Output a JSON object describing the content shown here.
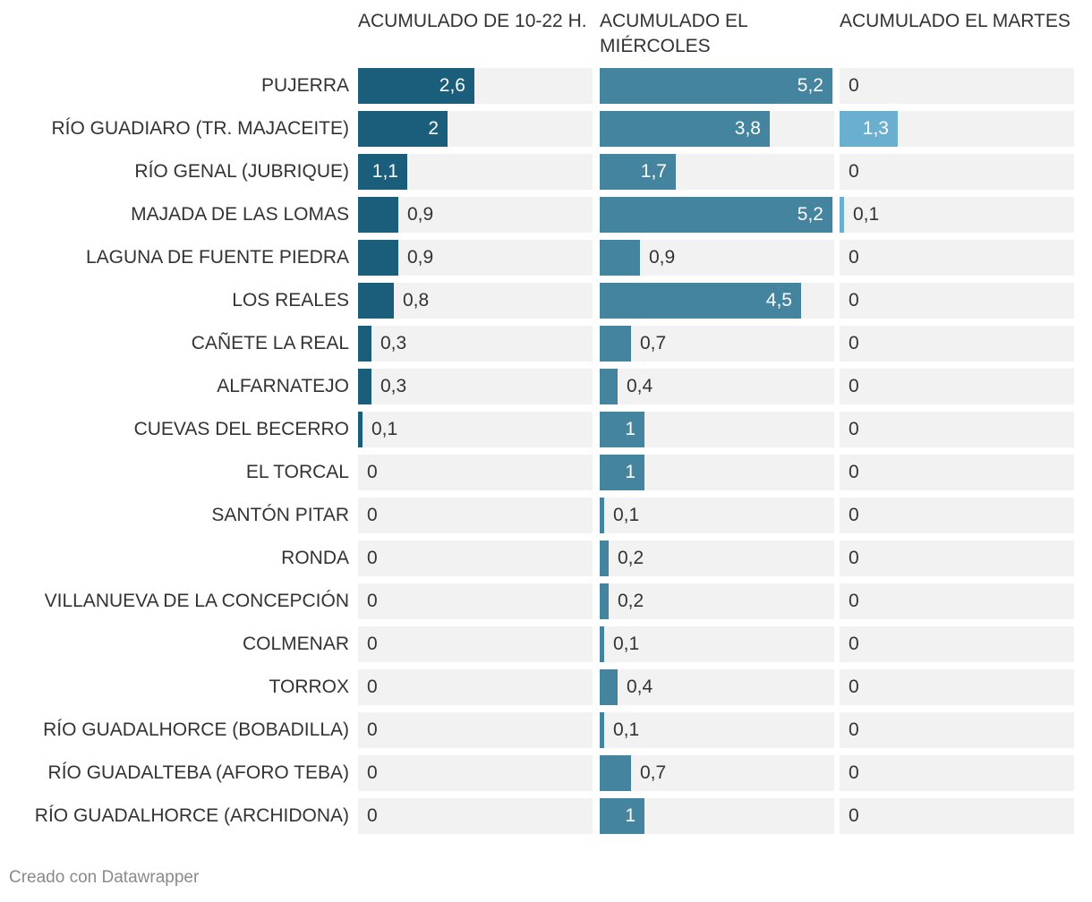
{
  "chart_data": {
    "type": "bar",
    "orientation": "horizontal",
    "categories": [
      "PUJERRA",
      "RÍO GUADIARO (TR. MAJACEITE)",
      "RÍO GENAL (JUBRIQUE)",
      "MAJADA DE LAS LOMAS",
      "LAGUNA DE FUENTE PIEDRA",
      "LOS REALES",
      "CAÑETE LA REAL",
      "ALFARNATEJO",
      "CUEVAS DEL BECERRO",
      "EL TORCAL",
      "SANTÓN PITAR",
      "RONDA",
      "VILLANUEVA DE LA CONCEPCIÓN",
      "COLMENAR",
      "TORROX",
      "RÍO GUADALHORCE (BOBADILLA)",
      "RÍO GUADALTEBA (AFORO TEBA)",
      "RÍO GUADALHORCE (ARCHIDONA)"
    ],
    "series": [
      {
        "name": "ACUMULADO DE 10-22 H.",
        "color": "#1b5e7b",
        "values": [
          2.6,
          2,
          1.1,
          0.9,
          0.9,
          0.8,
          0.3,
          0.3,
          0.1,
          0,
          0,
          0,
          0,
          0,
          0,
          0,
          0,
          0
        ],
        "labels": [
          "2,6",
          "2",
          "1,1",
          "0,9",
          "0,9",
          "0,8",
          "0,3",
          "0,3",
          "0,1",
          "0",
          "0",
          "0",
          "0",
          "0",
          "0",
          "0",
          "0",
          "0"
        ]
      },
      {
        "name": "ACUMULADO EL MIÉRCOLES",
        "color": "#44849f",
        "values": [
          5.2,
          3.8,
          1.7,
          5.2,
          0.9,
          4.5,
          0.7,
          0.4,
          1,
          1,
          0.1,
          0.2,
          0.2,
          0.1,
          0.4,
          0.1,
          0.7,
          1
        ],
        "labels": [
          "5,2",
          "3,8",
          "1,7",
          "5,2",
          "0,9",
          "4,5",
          "0,7",
          "0,4",
          "1",
          "1",
          "0,1",
          "0,2",
          "0,2",
          "0,1",
          "0,4",
          "0,1",
          "0,7",
          "1"
        ]
      },
      {
        "name": "ACUMULADO EL MARTES",
        "color": "#6aafd0",
        "values": [
          0,
          1.3,
          0,
          0.1,
          0,
          0,
          0,
          0,
          0,
          0,
          0,
          0,
          0,
          0,
          0,
          0,
          0,
          0
        ],
        "labels": [
          "0",
          "1,3",
          "0",
          "0,1",
          "0",
          "0",
          "0",
          "0",
          "0",
          "0",
          "0",
          "0",
          "0",
          "0",
          "0",
          "0",
          "0",
          "0"
        ]
      }
    ],
    "xlim": [
      0,
      5.2
    ],
    "grid": false,
    "legend": "none"
  },
  "footer": "Creado con Datawrapper"
}
